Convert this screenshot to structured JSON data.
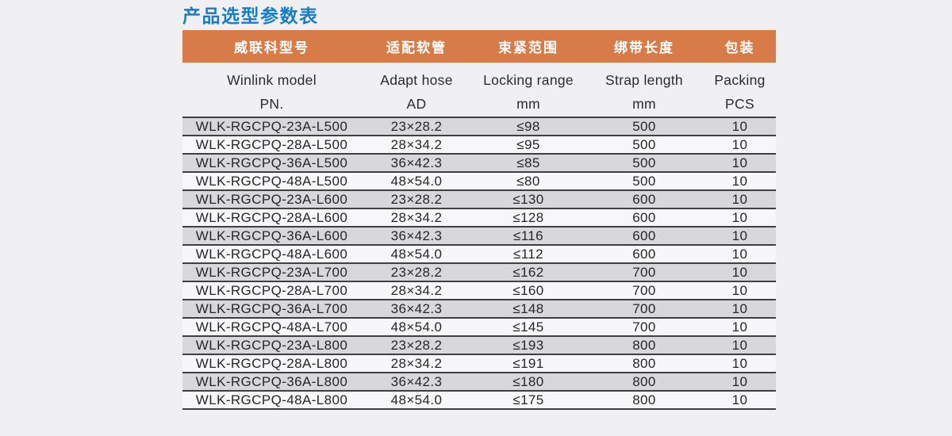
{
  "page": {
    "title": "产品选型参数表",
    "title_color": "#1a7dc2",
    "background_color": "#f0f0f2"
  },
  "table": {
    "header_bg_color": "#d77b49",
    "row_gray_color": "#d8d8da",
    "row_light_color": "#f7f7f9",
    "border_color": "#3f3f41",
    "columns": [
      {
        "zh": "威联科型号",
        "en_line1": "Winlink model",
        "en_line2": "PN."
      },
      {
        "zh": "适配软管",
        "en_line1": "Adapt hose",
        "en_line2": "AD"
      },
      {
        "zh": "束紧范围",
        "en_line1": "Locking range",
        "en_line2": "mm"
      },
      {
        "zh": "绑带长度",
        "en_line1": "Strap length",
        "en_line2": "mm"
      },
      {
        "zh": "包装",
        "en_line1": "Packing",
        "en_line2": "PCS"
      }
    ],
    "rows": [
      [
        "WLK-RGCPQ-23A-L500",
        "23×28.2",
        "≤98",
        "500",
        "10"
      ],
      [
        "WLK-RGCPQ-28A-L500",
        "28×34.2",
        "≤95",
        "500",
        "10"
      ],
      [
        "WLK-RGCPQ-36A-L500",
        "36×42.3",
        "≤85",
        "500",
        "10"
      ],
      [
        "WLK-RGCPQ-48A-L500",
        "48×54.0",
        "≤80",
        "500",
        "10"
      ],
      [
        "WLK-RGCPQ-23A-L600",
        "23×28.2",
        "≤130",
        "600",
        "10"
      ],
      [
        "WLK-RGCPQ-28A-L600",
        "28×34.2",
        "≤128",
        "600",
        "10"
      ],
      [
        "WLK-RGCPQ-36A-L600",
        "36×42.3",
        "≤116",
        "600",
        "10"
      ],
      [
        "WLK-RGCPQ-48A-L600",
        "48×54.0",
        "≤112",
        "600",
        "10"
      ],
      [
        "WLK-RGCPQ-23A-L700",
        "23×28.2",
        "≤162",
        "700",
        "10"
      ],
      [
        "WLK-RGCPQ-28A-L700",
        "28×34.2",
        "≤160",
        "700",
        "10"
      ],
      [
        "WLK-RGCPQ-36A-L700",
        "36×42.3",
        "≤148",
        "700",
        "10"
      ],
      [
        "WLK-RGCPQ-48A-L700",
        "48×54.0",
        "≤145",
        "700",
        "10"
      ],
      [
        "WLK-RGCPQ-23A-L800",
        "23×28.2",
        "≤193",
        "800",
        "10"
      ],
      [
        "WLK-RGCPQ-28A-L800",
        "28×34.2",
        "≤191",
        "800",
        "10"
      ],
      [
        "WLK-RGCPQ-36A-L800",
        "36×42.3",
        "≤180",
        "800",
        "10"
      ],
      [
        "WLK-RGCPQ-48A-L800",
        "48×54.0",
        "≤175",
        "800",
        "10"
      ]
    ]
  }
}
